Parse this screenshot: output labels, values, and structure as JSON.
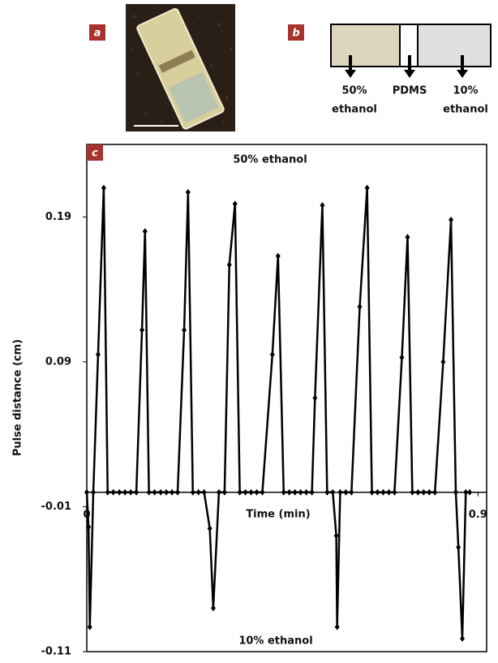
{
  "panels": {
    "a": {
      "label": "a"
    },
    "b": {
      "label": "b",
      "parts": [
        {
          "lines": [
            "50%",
            "ethanol"
          ]
        },
        {
          "lines": [
            "PDMS"
          ]
        },
        {
          "lines": [
            "10%",
            "ethanol"
          ]
        }
      ]
    }
  },
  "chart_data": {
    "type": "line",
    "panel_label": "c",
    "xlabel": "Time (min)",
    "ylabel": "Pulse distance (cm)",
    "annotations": [
      {
        "text": "50% ethanol"
      },
      {
        "text": "10% ethanol"
      }
    ],
    "xlim": [
      0,
      0.92
    ],
    "xticks": [
      0,
      0.9
    ],
    "ylim": [
      -0.11,
      0.24
    ],
    "yticks": [
      -0.11,
      -0.01,
      0.09,
      0.19
    ],
    "grid": false,
    "x": [
      0,
      0.004,
      0.007,
      0.015,
      0.026,
      0.039,
      0.048,
      0.061,
      0.075,
      0.088,
      0.101,
      0.114,
      0.127,
      0.134,
      0.143,
      0.156,
      0.17,
      0.183,
      0.196,
      0.209,
      0.224,
      0.233,
      0.244,
      0.257,
      0.27,
      0.283,
      0.291,
      0.304,
      0.317,
      0.328,
      0.341,
      0.352,
      0.365,
      0.378,
      0.391,
      0.404,
      0.427,
      0.44,
      0.453,
      0.466,
      0.479,
      0.492,
      0.505,
      0.518,
      0.525,
      0.542,
      0.553,
      0.566,
      0.574,
      0.576,
      0.583,
      0.596,
      0.609,
      0.628,
      0.645,
      0.656,
      0.669,
      0.682,
      0.695,
      0.708,
      0.725,
      0.738,
      0.749,
      0.762,
      0.775,
      0.788,
      0.801,
      0.82,
      0.838,
      0.849,
      0.855,
      0.864,
      0.872,
      0.881
    ],
    "series": [
      {
        "color": "#000000",
        "values": [
          0,
          -0.024,
          -0.093,
          0,
          0.095,
          0.21,
          0,
          0,
          0,
          0,
          0,
          0,
          0.112,
          0.18,
          0,
          0,
          0,
          0,
          0,
          0,
          0.112,
          0.207,
          0,
          0,
          0,
          -0.025,
          -0.08,
          0,
          0,
          0.157,
          0.199,
          0,
          0,
          0,
          0,
          0,
          0.095,
          0.163,
          0,
          0,
          0,
          0,
          0,
          0,
          0.065,
          0.198,
          0,
          0,
          -0.03,
          -0.093,
          0,
          0,
          0,
          0.128,
          0.21,
          0,
          0,
          0,
          0,
          0,
          0.093,
          0.176,
          0,
          0,
          0,
          0,
          0,
          0.09,
          0.188,
          0,
          -0.038,
          -0.101,
          0,
          0
        ]
      }
    ]
  }
}
